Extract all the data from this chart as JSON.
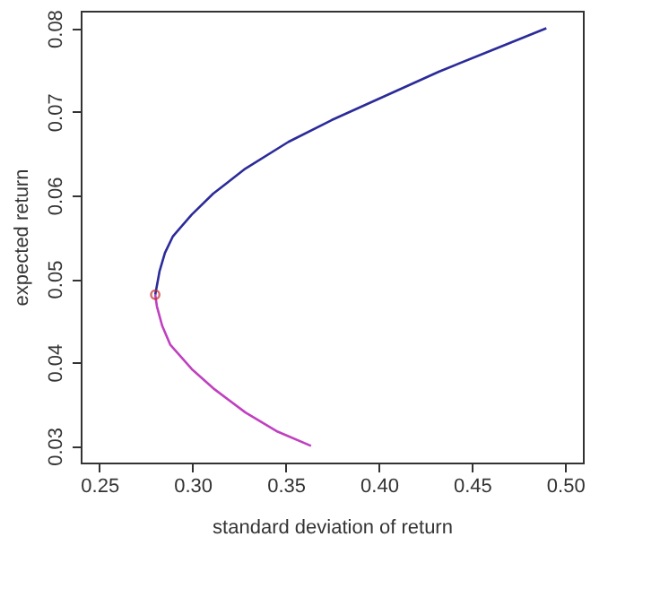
{
  "chart_data": {
    "type": "line",
    "xlabel": "standard deviation of return",
    "ylabel": "expected return",
    "xlim": [
      0.24,
      0.5095
    ],
    "ylim": [
      0.028,
      0.0821
    ],
    "xticks": [
      0.25,
      {
        "value": 0.3,
        "label": "0.30"
      },
      0.35,
      {
        "value": 0.4,
        "label": "0.40"
      },
      0.45,
      {
        "value": 0.5,
        "label": "0.50"
      }
    ],
    "yticks": [
      0.03,
      0.04,
      0.05,
      0.06,
      0.07,
      0.08
    ],
    "series": [
      {
        "color": "#2b2b9a",
        "x": [
          0.28,
          0.2823,
          0.2852,
          0.2895,
          0.2996,
          0.3111,
          0.3284,
          0.3515,
          0.3746,
          0.4034,
          0.4322,
          0.461,
          0.4899
        ],
        "values": [
          0.0481,
          0.0509,
          0.0531,
          0.0551,
          0.0577,
          0.0602,
          0.0632,
          0.0664,
          0.069,
          0.0719,
          0.0748,
          0.0774,
          0.08
        ]
      },
      {
        "color": "#c040c0",
        "x": [
          0.28,
          0.2809,
          0.2837,
          0.2881,
          0.2996,
          0.3111,
          0.3284,
          0.3457,
          0.3636
        ],
        "values": [
          0.0481,
          0.0467,
          0.0444,
          0.0421,
          0.0392,
          0.0369,
          0.034,
          0.0317,
          0.03
        ]
      },
      {
        "type": "scatter",
        "marker": "circle",
        "color": "#c03030",
        "x": [
          0.28
        ],
        "values": [
          0.0481
        ]
      }
    ]
  }
}
